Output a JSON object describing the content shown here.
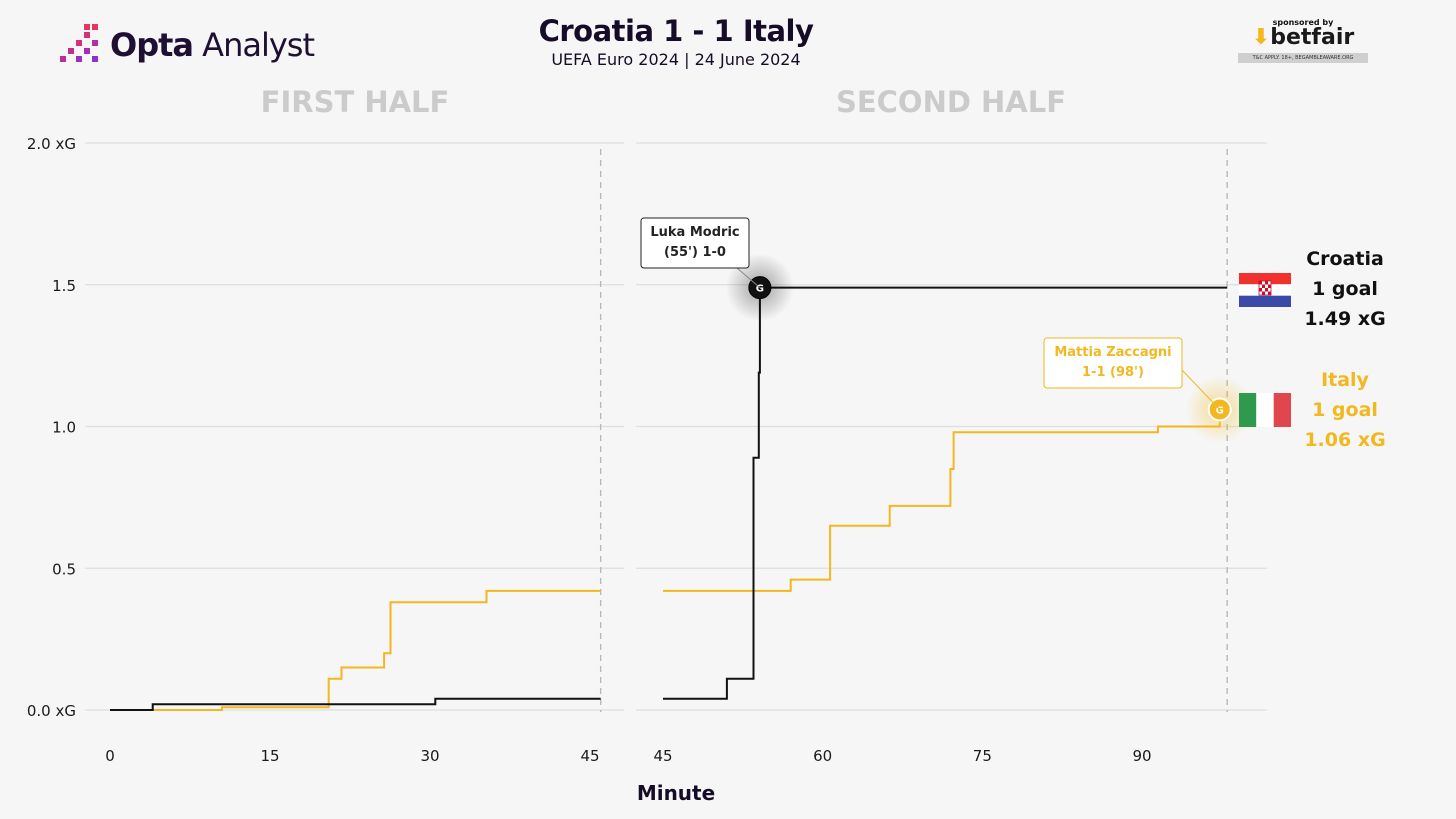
{
  "header": {
    "logo_name": "Opta Analyst",
    "logo_bold": "Opta",
    "logo_light": "Analyst",
    "title": "Croatia 1 - 1 Italy",
    "subtitle": "UEFA Euro 2024 | 24 June 2024",
    "sponsor_by": "sponsored by",
    "sponsor_brand": "betfair",
    "sponsor_tc": "T&C APPLY. 18+, BEGAMBLEAWARE.ORG"
  },
  "teams": {
    "croatia": {
      "name": "Croatia",
      "goals": "1 goal",
      "xg": "1.49 xG",
      "color": "#111111",
      "flag_icon": "croatia-flag-icon"
    },
    "italy": {
      "name": "Italy",
      "goals": "1 goal",
      "xg": "1.06 xG",
      "color": "#f3b71f",
      "flag_icon": "italy-flag-icon"
    }
  },
  "colors": {
    "croatia": "#111111",
    "italy": "#f3b71f",
    "grid": "#dedede",
    "half_label": "#cbcbcb",
    "text": "#1a1a1a"
  },
  "chart_data": {
    "type": "line",
    "subtype": "step",
    "xlabel": "Minute",
    "ylabel": "",
    "ylim": [
      0,
      2.0
    ],
    "y_ticks": [
      0.0,
      0.5,
      1.0,
      1.5,
      2.0
    ],
    "y_tick_labels": [
      "0.0 xG",
      "0.5",
      "1.0",
      "1.5",
      "2.0 xG"
    ],
    "grid": true,
    "panels": [
      {
        "label": "FIRST HALF",
        "xlim": [
          0,
          47
        ],
        "x_ticks": [
          0,
          15,
          30,
          45
        ],
        "end_marker": 46,
        "series": [
          {
            "name": "Croatia",
            "points": [
              [
                0,
                0
              ],
              [
                4,
                0
              ],
              [
                4,
                0.02
              ],
              [
                30.5,
                0.02
              ],
              [
                30.5,
                0.04
              ],
              [
                46,
                0.04
              ]
            ]
          },
          {
            "name": "Italy",
            "points": [
              [
                4,
                0
              ],
              [
                10.5,
                0
              ],
              [
                10.5,
                0.01
              ],
              [
                20.5,
                0.01
              ],
              [
                20.5,
                0.11
              ],
              [
                21.7,
                0.11
              ],
              [
                21.7,
                0.15
              ],
              [
                25.7,
                0.15
              ],
              [
                25.7,
                0.2
              ],
              [
                26.3,
                0.2
              ],
              [
                26.3,
                0.38
              ],
              [
                35.3,
                0.38
              ],
              [
                35.3,
                0.42
              ],
              [
                46,
                0.42
              ]
            ]
          }
        ]
      },
      {
        "label": "SECOND HALF",
        "xlim": [
          45,
          100
        ],
        "x_ticks": [
          45,
          60,
          75,
          90
        ],
        "end_marker": 98,
        "series": [
          {
            "name": "Croatia",
            "points": [
              [
                45,
                0.04
              ],
              [
                51,
                0.04
              ],
              [
                51,
                0.11
              ],
              [
                53.5,
                0.11
              ],
              [
                53.5,
                0.89
              ],
              [
                54,
                0.89
              ],
              [
                54,
                1.19
              ],
              [
                54.1,
                1.19
              ],
              [
                54.1,
                1.49
              ],
              [
                98,
                1.49
              ]
            ]
          },
          {
            "name": "Italy",
            "points": [
              [
                45,
                0.42
              ],
              [
                57,
                0.42
              ],
              [
                57,
                0.46
              ],
              [
                60.7,
                0.46
              ],
              [
                60.7,
                0.65
              ],
              [
                66.3,
                0.65
              ],
              [
                66.3,
                0.72
              ],
              [
                72,
                0.72
              ],
              [
                72,
                0.85
              ],
              [
                72.3,
                0.85
              ],
              [
                72.3,
                0.98
              ],
              [
                91.5,
                0.98
              ],
              [
                91.5,
                1.0
              ],
              [
                97.3,
                1.0
              ],
              [
                97.3,
                1.06
              ],
              [
                98,
                1.06
              ]
            ]
          }
        ],
        "annotations": [
          {
            "team": "Croatia",
            "label": "Luka Modric\n(55') 1-0",
            "x": 54.1,
            "y": 1.49
          },
          {
            "team": "Italy",
            "label": "Mattia Zaccagni\n1-1 (98')",
            "x": 97.3,
            "y": 1.06
          }
        ]
      }
    ],
    "goal_marker": "G"
  }
}
